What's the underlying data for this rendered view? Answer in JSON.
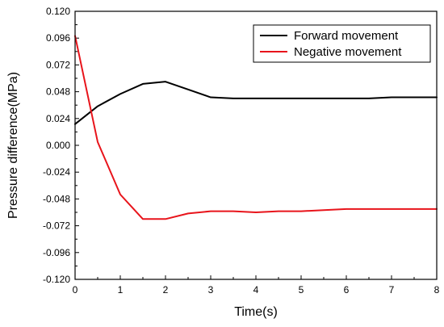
{
  "chart_data": {
    "type": "line",
    "title": "",
    "xlabel": "Time(s)",
    "ylabel": "Pressure difference(MPa)",
    "xlim": [
      0,
      8
    ],
    "ylim": [
      -0.12,
      0.12
    ],
    "x_ticks": [
      0,
      1,
      2,
      3,
      4,
      5,
      6,
      7,
      8
    ],
    "x_tick_labels": [
      "0",
      "1",
      "2",
      "3",
      "4",
      "5",
      "6",
      "7",
      "8"
    ],
    "y_ticks": [
      0.12,
      0.096,
      0.072,
      0.048,
      0.024,
      0.0,
      -0.024,
      -0.048,
      -0.072,
      -0.096,
      -0.12
    ],
    "y_tick_labels": [
      "0.120",
      "0.096",
      "0.072",
      "0.048",
      "0.024",
      "0.000",
      "-0.024",
      "-0.048",
      "-0.072",
      "-0.096",
      "-0.120"
    ],
    "grid": false,
    "legend_position": "top-right",
    "series": [
      {
        "name": "Forward movement",
        "color": "#000000",
        "x": [
          0,
          0.5,
          1,
          1.5,
          2,
          2.5,
          3,
          3.5,
          4,
          4.5,
          5,
          5.5,
          6,
          6.5,
          7,
          7.5,
          8
        ],
        "y": [
          0.019,
          0.035,
          0.046,
          0.055,
          0.057,
          0.05,
          0.043,
          0.042,
          0.042,
          0.042,
          0.042,
          0.042,
          0.042,
          0.042,
          0.043,
          0.043,
          0.043
        ]
      },
      {
        "name": "Negative movement",
        "color": "#e8141b",
        "x": [
          0,
          0.5,
          1,
          1.5,
          2,
          2.5,
          3,
          3.5,
          4,
          4.5,
          5,
          5.5,
          6,
          6.5,
          7,
          7.5,
          8
        ],
        "y": [
          0.098,
          0.003,
          -0.044,
          -0.066,
          -0.066,
          -0.061,
          -0.059,
          -0.059,
          -0.06,
          -0.059,
          -0.059,
          -0.058,
          -0.057,
          -0.057,
          -0.057,
          -0.057,
          -0.057
        ]
      }
    ]
  }
}
